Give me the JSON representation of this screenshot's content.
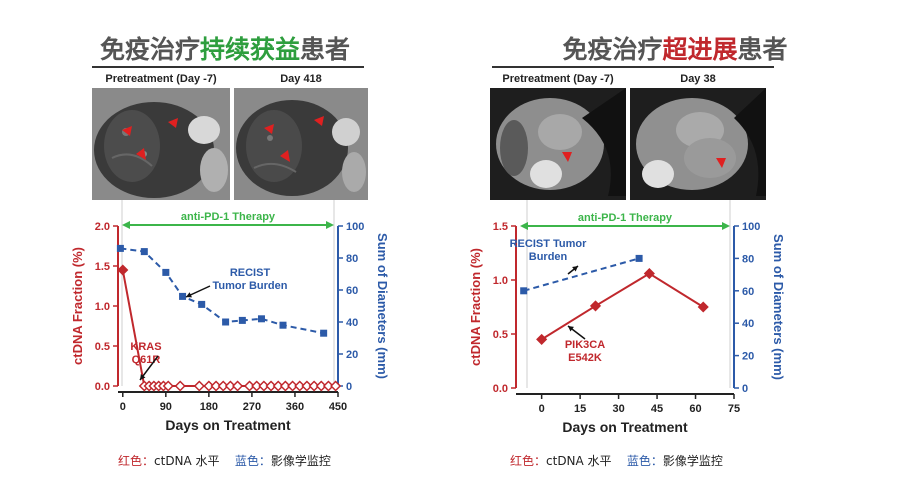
{
  "panels": [
    {
      "title_prefix": "免疫治疗",
      "title_highlight": "持续获益",
      "title_suffix": "患者",
      "highlight_color": "#2e9e3e",
      "scan_labels": [
        "Pretreatment (Day -7)",
        "Day 418"
      ],
      "scan_type": "lung",
      "legend": {
        "red_label": "红色：",
        "red_text": "ctDNA 水平",
        "blue_label": "蓝色：",
        "blue_text": "影像学监控"
      }
    },
    {
      "title_prefix": "免疫治疗",
      "title_highlight": "超进展",
      "title_suffix": "患者",
      "highlight_color": "#c0282d",
      "scan_labels": [
        "Pretreatment (Day -7)",
        "Day 38"
      ],
      "scan_type": "mediastinal",
      "legend": {
        "red_label": "红色：",
        "red_text": "ctDNA 水平",
        "blue_label": "蓝色：",
        "blue_text": "影像学监控"
      }
    }
  ],
  "colors": {
    "red": "#c0282d",
    "blue": "#2c5aa8",
    "green": "#3cb54a",
    "text": "#222222"
  },
  "chart_data": [
    {
      "type": "line",
      "therapy_label": "anti-PD-1 Therapy",
      "xlabel": "Days on Treatment",
      "xlim": [
        -10,
        450
      ],
      "xticks": [
        0,
        90,
        180,
        270,
        360,
        450
      ],
      "y_left": {
        "label": "ctDNA Fraction (%)",
        "lim": [
          0,
          2.0
        ],
        "ticks": [
          "0.0",
          "0.5",
          "1.0",
          "1.5",
          "2.0"
        ]
      },
      "y_right": {
        "label": "Sum of Diameters (mm)",
        "lim": [
          0,
          100
        ],
        "ticks": [
          "0",
          "20",
          "40",
          "60",
          "80",
          "100"
        ]
      },
      "series": [
        {
          "axis": "left",
          "color": "#c0282d",
          "style": "solid",
          "marker": "diamond",
          "hollow_after_first": true,
          "annotation": [
            "KRAS",
            "Q61R"
          ],
          "x": [
            0,
            45,
            55,
            65,
            75,
            85,
            95,
            120,
            160,
            180,
            195,
            210,
            225,
            240,
            265,
            280,
            295,
            310,
            325,
            340,
            355,
            370,
            385,
            400,
            415,
            430,
            445
          ],
          "y": [
            1.45,
            0,
            0,
            0,
            0,
            0,
            0,
            0,
            0,
            0,
            0,
            0,
            0,
            0,
            0,
            0,
            0,
            0,
            0,
            0,
            0,
            0,
            0,
            0,
            0,
            0,
            0
          ]
        },
        {
          "axis": "right",
          "color": "#2c5aa8",
          "style": "dashed",
          "marker": "square",
          "annotation": [
            "RECIST",
            "Tumor Burden"
          ],
          "x": [
            -5,
            45,
            90,
            125,
            165,
            215,
            250,
            290,
            335,
            420
          ],
          "y": [
            86,
            84,
            71,
            56,
            51,
            40,
            41,
            42,
            38,
            33
          ]
        }
      ]
    },
    {
      "type": "line",
      "therapy_label": "anti-PD-1 Therapy",
      "xlabel": "Days on Treatment",
      "xlim": [
        -10,
        75
      ],
      "xticks": [
        0,
        15,
        30,
        45,
        60,
        75
      ],
      "y_left": {
        "label": "ctDNA Fraction (%)",
        "lim": [
          0,
          1.5
        ],
        "ticks": [
          "0.0",
          "0.5",
          "1.0",
          "1.5"
        ]
      },
      "y_right": {
        "label": "Sum of Diameters (mm)",
        "lim": [
          0,
          100
        ],
        "ticks": [
          "0",
          "20",
          "40",
          "60",
          "80",
          "100"
        ]
      },
      "series": [
        {
          "axis": "left",
          "color": "#c0282d",
          "style": "solid",
          "marker": "diamond",
          "annotation": [
            "PIK3CA",
            "E542K"
          ],
          "x": [
            0,
            21,
            42,
            63
          ],
          "y": [
            0.45,
            0.76,
            1.06,
            0.75
          ]
        },
        {
          "axis": "right",
          "color": "#2c5aa8",
          "style": "dashed",
          "marker": "square",
          "annotation": [
            "RECIST Tumor",
            "Burden"
          ],
          "x": [
            -7,
            38
          ],
          "y": [
            60,
            80
          ]
        }
      ]
    }
  ]
}
